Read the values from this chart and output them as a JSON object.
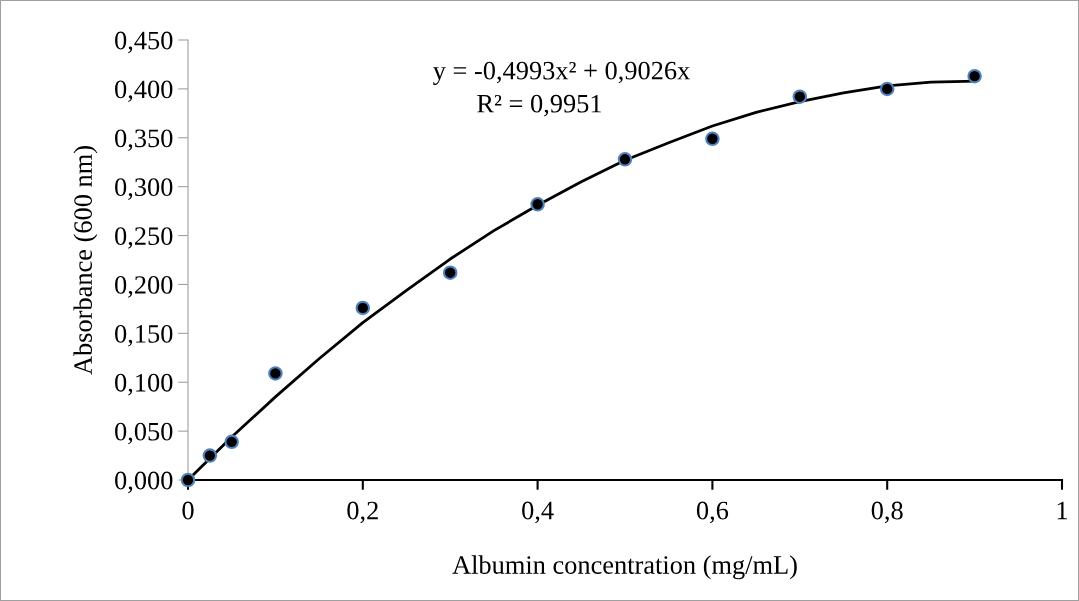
{
  "chart_data": {
    "type": "scatter",
    "xlabel": "Albumin concentration (mg/mL)",
    "ylabel": "Absorbance (600 nm)",
    "x": [
      0,
      0.025,
      0.05,
      0.1,
      0.2,
      0.3,
      0.4,
      0.5,
      0.6,
      0.7,
      0.8,
      0.9
    ],
    "series": [
      {
        "color": "#000000",
        "values": [
          0,
          0.025,
          0.039,
          0.109,
          0.176,
          0.212,
          0.282,
          0.328,
          0.349,
          0.392,
          0.4,
          0.413
        ]
      },
      {
        "type": "line",
        "marker": "none",
        "color": "#000000",
        "x": [
          0,
          0.05,
          0.1,
          0.15,
          0.2,
          0.25,
          0.3,
          0.35,
          0.4,
          0.45,
          0.5,
          0.55,
          0.6,
          0.65,
          0.7,
          0.75,
          0.8,
          0.85,
          0.9
        ],
        "values": [
          0,
          0.044,
          0.085,
          0.124,
          0.161,
          0.194,
          0.226,
          0.255,
          0.281,
          0.305,
          0.327,
          0.345,
          0.362,
          0.376,
          0.387,
          0.396,
          0.403,
          0.407,
          0.408
        ]
      }
    ],
    "xlim": [
      0,
      1
    ],
    "xticks": [
      0,
      {
        "value": 0.2,
        "label": "0,2"
      },
      {
        "value": 0.4,
        "label": "0,4"
      },
      {
        "value": 0.6,
        "label": "0,6"
      },
      {
        "value": 0.8,
        "label": "0,8"
      },
      1
    ],
    "ylim": [
      0,
      0.45
    ],
    "yticks": [
      {
        "value": 0,
        "label": "0,000"
      },
      {
        "value": 0.05,
        "label": "0,050"
      },
      {
        "value": 0.1,
        "label": "0,100"
      },
      {
        "value": 0.15,
        "label": "0,150"
      },
      {
        "value": 0.2,
        "label": "0,200"
      },
      {
        "value": 0.25,
        "label": "0,250"
      },
      {
        "value": 0.3,
        "label": "0,300"
      },
      {
        "value": 0.35,
        "label": "0,350"
      },
      {
        "value": 0.4,
        "label": "0,400"
      },
      {
        "value": 0.45,
        "label": "0,450"
      }
    ],
    "marker": "circle",
    "grid": false,
    "legend": false,
    "annotations": [
      "y = -0,4993x² + 0,9026x",
      "R² = 0,9951"
    ]
  }
}
